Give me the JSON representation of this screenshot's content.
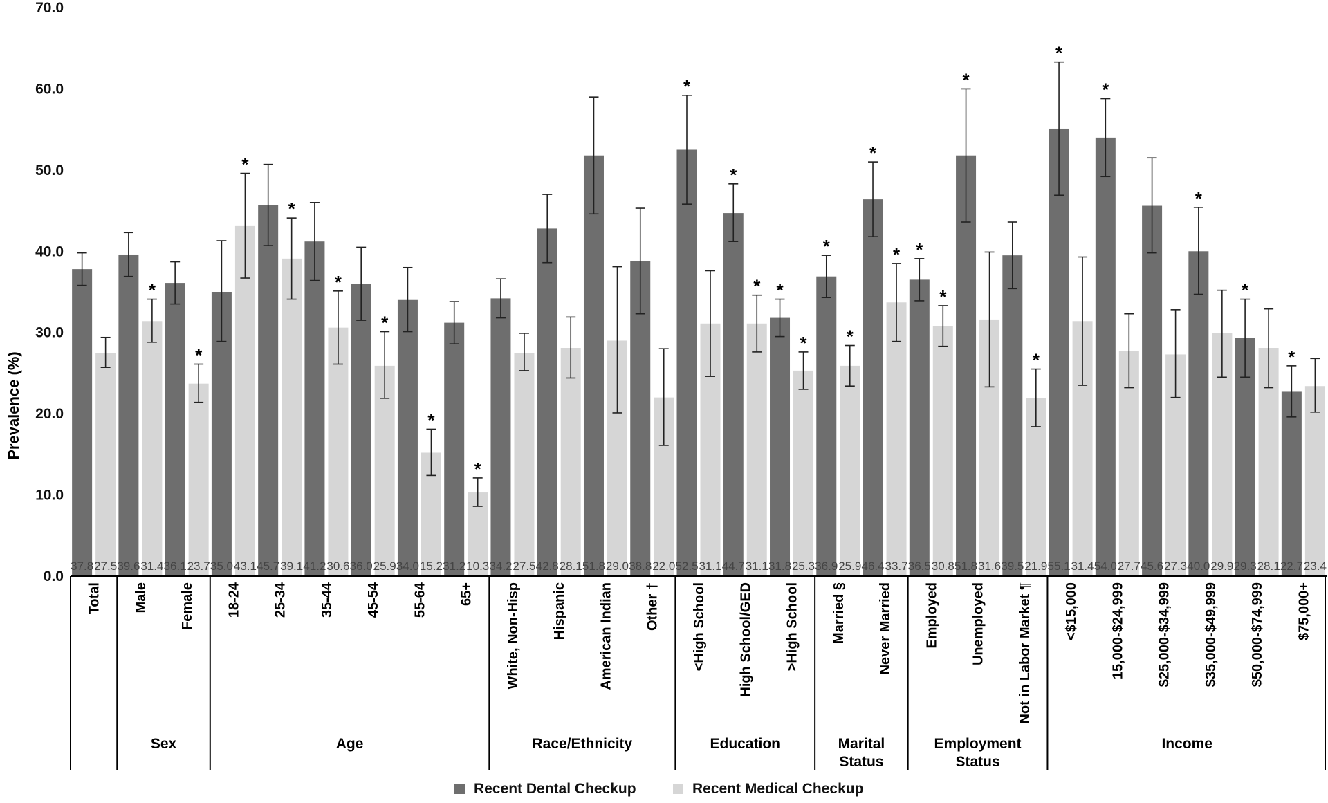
{
  "chart_data": {
    "type": "bar",
    "ylabel": "Prevalence (%)",
    "ylim": [
      0,
      70
    ],
    "yticks": [
      "0.0",
      "10.0",
      "20.0",
      "30.0",
      "40.0",
      "50.0",
      "60.0",
      "70.0"
    ],
    "series": [
      {
        "name": "Recent Dental Checkup",
        "color": "#6e6e6e"
      },
      {
        "name": "Recent Medical Checkup",
        "color": "#d6d6d6"
      }
    ],
    "groups": [
      {
        "name": "",
        "categories": [
          {
            "label": "Total",
            "values": [
              37.8,
              27.5
            ],
            "errors": [
              [
                35.8,
                39.8
              ],
              [
                25.7,
                29.4
              ]
            ],
            "stars": [
              false,
              false
            ]
          }
        ]
      },
      {
        "name": "Sex",
        "categories": [
          {
            "label": "Male",
            "values": [
              39.6,
              31.4
            ],
            "errors": [
              [
                36.9,
                42.3
              ],
              [
                28.8,
                34.1
              ]
            ],
            "stars": [
              false,
              true
            ]
          },
          {
            "label": "Female",
            "values": [
              36.1,
              23.7
            ],
            "errors": [
              [
                33.5,
                38.7
              ],
              [
                21.4,
                26.1
              ]
            ],
            "stars": [
              false,
              true
            ]
          }
        ]
      },
      {
        "name": "Age",
        "categories": [
          {
            "label": "18-24",
            "values": [
              35.0,
              43.1
            ],
            "errors": [
              [
                28.9,
                41.3
              ],
              [
                36.7,
                49.6
              ]
            ],
            "stars": [
              false,
              true
            ]
          },
          {
            "label": "25-34",
            "values": [
              45.7,
              39.1
            ],
            "errors": [
              [
                40.7,
                50.7
              ],
              [
                34.1,
                44.1
              ]
            ],
            "stars": [
              false,
              true
            ]
          },
          {
            "label": "35-44",
            "values": [
              41.2,
              30.6
            ],
            "errors": [
              [
                36.4,
                46.0
              ],
              [
                26.1,
                35.1
              ]
            ],
            "stars": [
              false,
              true
            ]
          },
          {
            "label": "45-54",
            "values": [
              36.0,
              25.9
            ],
            "errors": [
              [
                31.5,
                40.5
              ],
              [
                21.9,
                30.1
              ]
            ],
            "stars": [
              false,
              true
            ]
          },
          {
            "label": "55-64",
            "values": [
              34.0,
              15.2
            ],
            "errors": [
              [
                30.1,
                38.0
              ],
              [
                12.4,
                18.1
              ]
            ],
            "stars": [
              false,
              true
            ]
          },
          {
            "label": "65+",
            "values": [
              31.2,
              10.3
            ],
            "errors": [
              [
                28.6,
                33.8
              ],
              [
                8.6,
                12.1
              ]
            ],
            "stars": [
              false,
              true
            ]
          }
        ]
      },
      {
        "name": "Race/Ethnicity",
        "categories": [
          {
            "label": "White, Non-Hisp",
            "values": [
              34.2,
              27.5
            ],
            "errors": [
              [
                31.8,
                36.6
              ],
              [
                25.3,
                29.9
              ]
            ],
            "stars": [
              false,
              false
            ]
          },
          {
            "label": "Hispanic",
            "values": [
              42.8,
              28.1
            ],
            "errors": [
              [
                38.6,
                47.0
              ],
              [
                24.4,
                31.9
              ]
            ],
            "stars": [
              false,
              false
            ]
          },
          {
            "label": "American Indian",
            "values": [
              51.8,
              29.0
            ],
            "errors": [
              [
                44.6,
                59.0
              ],
              [
                20.1,
                38.1
              ]
            ],
            "stars": [
              false,
              false
            ]
          },
          {
            "label": "Other †",
            "values": [
              38.8,
              22.0
            ],
            "errors": [
              [
                32.3,
                45.3
              ],
              [
                16.1,
                28.0
              ]
            ],
            "stars": [
              false,
              false
            ]
          }
        ]
      },
      {
        "name": "Education",
        "categories": [
          {
            "label": "<High School",
            "values": [
              52.5,
              31.1
            ],
            "errors": [
              [
                45.8,
                59.2
              ],
              [
                24.6,
                37.6
              ]
            ],
            "stars": [
              true,
              false
            ]
          },
          {
            "label": "High School/GED",
            "values": [
              44.7,
              31.1
            ],
            "errors": [
              [
                41.2,
                48.3
              ],
              [
                27.6,
                34.6
              ]
            ],
            "stars": [
              true,
              true
            ]
          },
          {
            "label": ">High School",
            "values": [
              31.8,
              25.3
            ],
            "errors": [
              [
                29.5,
                34.1
              ],
              [
                23.0,
                27.6
              ]
            ],
            "stars": [
              true,
              true
            ]
          }
        ]
      },
      {
        "name": "Marital Status",
        "categories": [
          {
            "label": "Married §",
            "values": [
              36.9,
              25.9
            ],
            "errors": [
              [
                34.3,
                39.5
              ],
              [
                23.4,
                28.4
              ]
            ],
            "stars": [
              true,
              true
            ]
          },
          {
            "label": "Never Married",
            "values": [
              46.4,
              33.7
            ],
            "errors": [
              [
                41.8,
                51.0
              ],
              [
                28.9,
                38.5
              ]
            ],
            "stars": [
              true,
              true
            ]
          }
        ]
      },
      {
        "name": "Employment Status",
        "categories": [
          {
            "label": "Employed",
            "values": [
              36.5,
              30.8
            ],
            "errors": [
              [
                33.9,
                39.1
              ],
              [
                28.3,
                33.3
              ]
            ],
            "stars": [
              true,
              true
            ]
          },
          {
            "label": "Unemployed",
            "values": [
              51.8,
              31.6
            ],
            "errors": [
              [
                43.6,
                60.0
              ],
              [
                23.3,
                39.9
              ]
            ],
            "stars": [
              true,
              false
            ]
          },
          {
            "label": "Not in Labor Market ¶",
            "values": [
              39.5,
              21.9
            ],
            "errors": [
              [
                35.4,
                43.6
              ],
              [
                18.4,
                25.5
              ]
            ],
            "stars": [
              false,
              true
            ]
          }
        ]
      },
      {
        "name": "Income",
        "categories": [
          {
            "label": "<$15,000",
            "values": [
              55.1,
              31.4
            ],
            "errors": [
              [
                46.9,
                63.3
              ],
              [
                23.5,
                39.3
              ]
            ],
            "stars": [
              true,
              false
            ]
          },
          {
            "label": "15,000-$24,999",
            "values": [
              54.0,
              27.7
            ],
            "errors": [
              [
                49.2,
                58.8
              ],
              [
                23.2,
                32.3
              ]
            ],
            "stars": [
              true,
              false
            ]
          },
          {
            "label": "$25,000-$34,999",
            "values": [
              45.6,
              27.3
            ],
            "errors": [
              [
                39.8,
                51.5
              ],
              [
                22.0,
                32.8
              ]
            ],
            "stars": [
              false,
              false
            ]
          },
          {
            "label": "$35,000-$49,999",
            "values": [
              40.0,
              29.9
            ],
            "errors": [
              [
                34.7,
                45.4
              ],
              [
                24.5,
                35.2
              ]
            ],
            "stars": [
              true,
              false
            ]
          },
          {
            "label": "$50,000-$74,999",
            "values": [
              29.3,
              28.1
            ],
            "errors": [
              [
                24.5,
                34.1
              ],
              [
                23.2,
                32.9
              ]
            ],
            "stars": [
              true,
              false
            ]
          },
          {
            "label": "$75,000+",
            "values": [
              22.7,
              23.4
            ],
            "errors": [
              [
                19.6,
                25.9
              ],
              [
                20.2,
                26.8
              ]
            ],
            "stars": [
              true,
              false
            ]
          }
        ]
      }
    ],
    "significance_marker": "*"
  }
}
